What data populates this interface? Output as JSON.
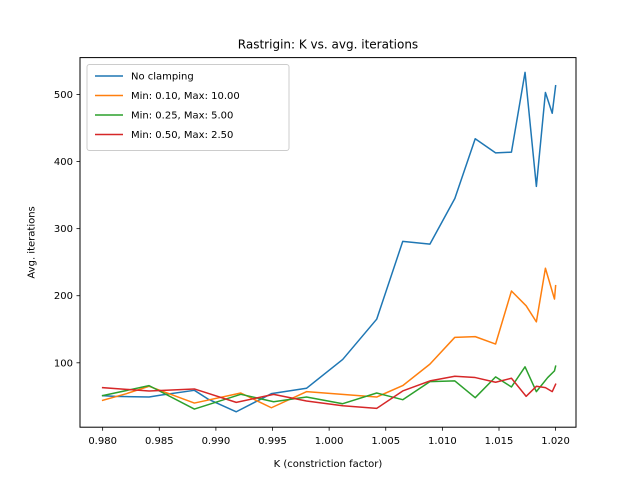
{
  "chart_data": {
    "type": "line",
    "title": "Rastrigin: K vs. avg. iterations",
    "xlabel": "K (constriction factor)",
    "ylabel": "Avg. iterations",
    "xlim": [
      0.978,
      1.0218
    ],
    "ylim": [
      4,
      555
    ],
    "xticks": [
      0.98,
      0.985,
      0.99,
      0.995,
      1.0,
      1.005,
      1.01,
      1.015,
      1.02
    ],
    "xtick_labels": [
      "0.980",
      "0.985",
      "0.990",
      "0.995",
      "1.000",
      "1.005",
      "1.010",
      "1.015",
      "1.020"
    ],
    "yticks": [
      100,
      200,
      300,
      400,
      500
    ],
    "ytick_labels": [
      "100",
      "200",
      "300",
      "400",
      "500"
    ],
    "grid": false,
    "legend_position": "top-left",
    "series": [
      {
        "name": "No clamping",
        "color": "#1f77b4",
        "x": [
          0.98,
          0.9811,
          0.9841,
          0.9852,
          0.9881,
          0.9893,
          0.9918,
          0.9949,
          0.998,
          1.0012,
          1.0042,
          1.0065,
          1.0089,
          1.0111,
          1.0129,
          1.0147,
          1.0161,
          1.0173,
          1.0183,
          1.0191,
          1.0197,
          1.02
        ],
        "y": [
          51,
          50,
          49,
          52,
          59,
          46,
          27,
          54,
          62,
          105,
          165,
          281,
          277,
          345,
          434,
          413,
          414,
          533,
          363,
          503,
          472,
          513
        ]
      },
      {
        "name": "Min: 0.10, Max: 10.00",
        "color": "#ff7f0e",
        "x": [
          0.98,
          0.9821,
          0.9841,
          0.9881,
          0.9922,
          0.9949,
          0.998,
          1.0042,
          1.0065,
          1.0089,
          1.0111,
          1.0129,
          1.0147,
          1.0161,
          1.0174,
          1.0183,
          1.0191,
          1.0199,
          1.02
        ],
        "y": [
          44,
          54,
          65,
          40,
          55,
          33,
          57,
          49,
          66,
          98,
          138,
          139,
          128,
          207,
          185,
          161,
          241,
          195,
          215
        ]
      },
      {
        "name": "Min: 0.25, Max: 5.00",
        "color": "#2ca02c",
        "x": [
          0.98,
          0.9841,
          0.9881,
          0.9922,
          0.9951,
          0.998,
          1.0012,
          1.0042,
          1.0065,
          1.0089,
          1.0111,
          1.0129,
          1.0147,
          1.0161,
          1.0173,
          1.0183,
          1.0193,
          1.0199,
          1.02
        ],
        "y": [
          51,
          66,
          31,
          53,
          42,
          49,
          39,
          55,
          45,
          72,
          73,
          48,
          79,
          64,
          94,
          57,
          78,
          88,
          95
        ]
      },
      {
        "name": "Min: 0.50, Max: 2.50",
        "color": "#d62728",
        "x": [
          0.98,
          0.9841,
          0.9881,
          0.9918,
          0.9951,
          0.998,
          1.0012,
          1.0042,
          1.0065,
          1.0089,
          1.0111,
          1.0129,
          1.0147,
          1.0161,
          1.0174,
          1.0183,
          1.0191,
          1.0197,
          1.02
        ],
        "y": [
          63,
          58,
          61,
          41,
          53,
          43,
          36,
          32,
          58,
          73,
          80,
          78,
          71,
          77,
          50,
          65,
          63,
          57,
          68
        ]
      }
    ]
  }
}
